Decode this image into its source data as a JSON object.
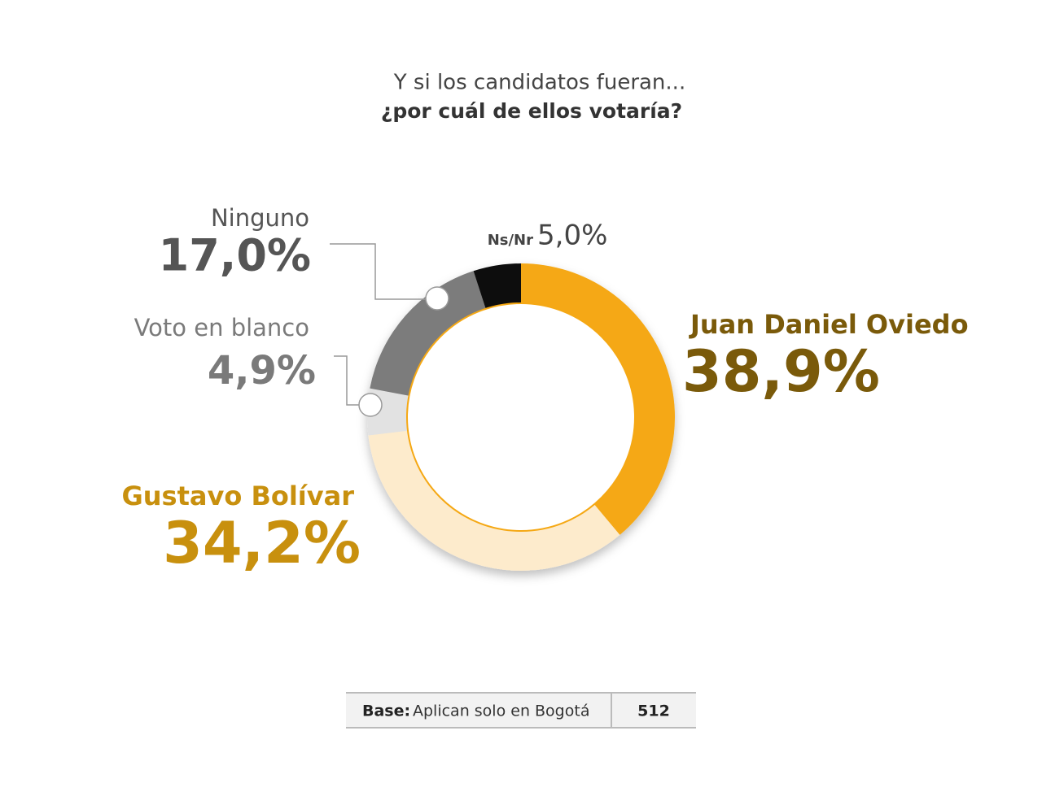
{
  "chart_data": {
    "type": "donut",
    "title": "Y si los candidatos fueran...",
    "subtitle": "¿por cuál de ellos votaría?",
    "categories": [
      "Juan Daniel Oviedo",
      "Gustavo Bolívar",
      "Voto en blanco",
      "Ninguno",
      "Ns/Nr"
    ],
    "values": [
      38.9,
      34.2,
      4.9,
      17.0,
      5.0
    ],
    "value_labels": [
      "38,9%",
      "34,2%",
      "4,9%",
      "17,0%",
      "5,0%"
    ],
    "colors": [
      "#f5a814",
      "#fdebcc",
      "#e2e2e2",
      "#7b7b7b",
      "#111111"
    ]
  },
  "footer": {
    "label": "Base:",
    "text": "Aplican solo en Bogotá",
    "n": "512"
  }
}
